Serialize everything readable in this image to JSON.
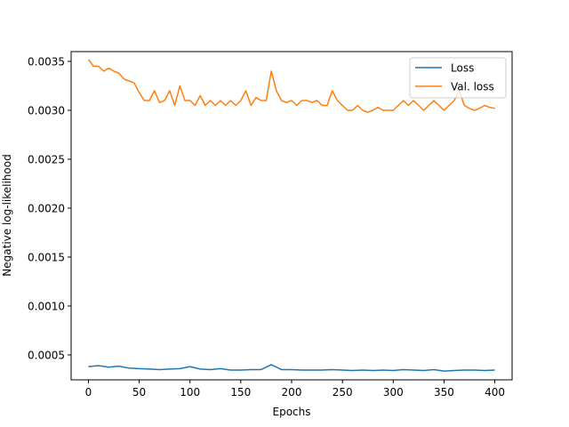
{
  "chart_data": {
    "type": "line",
    "title": "",
    "xlabel": "Epochs",
    "ylabel": "Negative log-likelihood",
    "xlim": [
      -17,
      417
    ],
    "ylim": [
      0.000245,
      0.0036
    ],
    "xticks": [
      0,
      50,
      100,
      150,
      200,
      250,
      300,
      350,
      400
    ],
    "xtick_labels": [
      "0",
      "50",
      "100",
      "150",
      "200",
      "250",
      "300",
      "350",
      "400"
    ],
    "yticks": [
      0.0005,
      0.001,
      0.0015,
      0.002,
      0.0025,
      0.003,
      0.0035
    ],
    "ytick_labels": [
      "0.0005",
      "0.0010",
      "0.0015",
      "0.0020",
      "0.0025",
      "0.0030",
      "0.0035"
    ],
    "grid": false,
    "legend_position": "upper right",
    "series": [
      {
        "name": "Loss",
        "color": "#1f77b4",
        "x": [
          0,
          10,
          20,
          30,
          40,
          50,
          60,
          70,
          80,
          90,
          100,
          110,
          120,
          130,
          140,
          150,
          160,
          170,
          180,
          190,
          200,
          210,
          220,
          230,
          240,
          250,
          260,
          270,
          280,
          290,
          300,
          310,
          320,
          330,
          340,
          350,
          360,
          370,
          380,
          390,
          400
        ],
        "values": [
          0.00038,
          0.00039,
          0.000375,
          0.000385,
          0.000365,
          0.00036,
          0.000355,
          0.00035,
          0.000355,
          0.00036,
          0.00038,
          0.000355,
          0.00035,
          0.00036,
          0.000345,
          0.000345,
          0.00035,
          0.00035,
          0.0004,
          0.00035,
          0.00035,
          0.000345,
          0.000345,
          0.000345,
          0.00035,
          0.000345,
          0.00034,
          0.000345,
          0.00034,
          0.000345,
          0.00034,
          0.00035,
          0.000345,
          0.00034,
          0.00035,
          0.000335,
          0.00034,
          0.000345,
          0.000345,
          0.00034,
          0.000345
        ]
      },
      {
        "name": "Val. loss",
        "color": "#ff7f0e",
        "x": [
          0,
          5,
          10,
          15,
          20,
          25,
          30,
          35,
          40,
          45,
          50,
          55,
          60,
          65,
          70,
          75,
          80,
          85,
          90,
          95,
          100,
          105,
          110,
          115,
          120,
          125,
          130,
          135,
          140,
          145,
          150,
          155,
          160,
          165,
          170,
          175,
          180,
          185,
          190,
          195,
          200,
          205,
          210,
          215,
          220,
          225,
          230,
          235,
          240,
          245,
          250,
          255,
          260,
          265,
          270,
          275,
          280,
          285,
          290,
          295,
          300,
          305,
          310,
          315,
          320,
          325,
          330,
          335,
          340,
          345,
          350,
          355,
          360,
          365,
          370,
          375,
          380,
          385,
          390,
          395,
          400
        ],
        "values": [
          0.00352,
          0.00345,
          0.00345,
          0.0034,
          0.00343,
          0.0034,
          0.00338,
          0.00332,
          0.0033,
          0.00328,
          0.00318,
          0.0031,
          0.0031,
          0.0032,
          0.00308,
          0.0031,
          0.0032,
          0.00305,
          0.00325,
          0.0031,
          0.0031,
          0.00305,
          0.00315,
          0.00305,
          0.0031,
          0.00305,
          0.0031,
          0.00305,
          0.0031,
          0.00305,
          0.0031,
          0.0032,
          0.00305,
          0.00313,
          0.0031,
          0.0031,
          0.0034,
          0.0032,
          0.0031,
          0.00308,
          0.0031,
          0.00305,
          0.0031,
          0.0031,
          0.00308,
          0.0031,
          0.00305,
          0.00305,
          0.0032,
          0.0031,
          0.00305,
          0.003,
          0.003,
          0.00305,
          0.003,
          0.00298,
          0.003,
          0.00303,
          0.003,
          0.003,
          0.003,
          0.00305,
          0.0031,
          0.00305,
          0.0031,
          0.00305,
          0.003,
          0.00305,
          0.0031,
          0.00305,
          0.003,
          0.00305,
          0.0031,
          0.0032,
          0.00305,
          0.00302,
          0.003,
          0.00302,
          0.00305,
          0.00303,
          0.00302
        ]
      }
    ]
  }
}
